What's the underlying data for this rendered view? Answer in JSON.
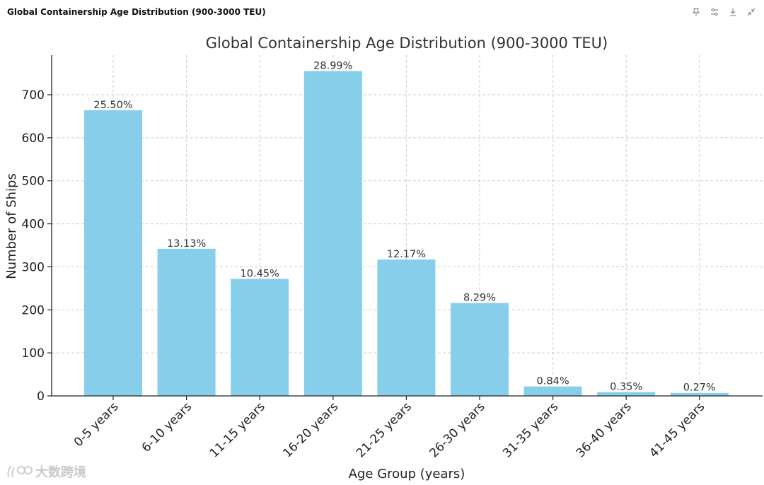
{
  "window": {
    "title": "Global Containership Age Distribution (900-3000 TEU)"
  },
  "toolbar": {
    "icons": [
      "pin-icon",
      "settings-icon",
      "download-icon",
      "collapse-icon"
    ]
  },
  "watermark": {
    "text": "大数跨境"
  },
  "colors": {
    "bar": "#87CEEB",
    "grid": "#cccccc",
    "axis": "#222222"
  },
  "chart_data": {
    "type": "bar",
    "title": "Global Containership Age Distribution (900-3000 TEU)",
    "xlabel": "Age Group (years)",
    "ylabel": "Number of Ships",
    "categories": [
      "0-5 years",
      "6-10 years",
      "11-15 years",
      "16-20 years",
      "21-25 years",
      "26-30 years",
      "31-35 years",
      "36-40 years",
      "41-45 years"
    ],
    "values": [
      664,
      342,
      272,
      755,
      317,
      216,
      22,
      9,
      7
    ],
    "data_labels": [
      "25.50%",
      "13.13%",
      "10.45%",
      "28.99%",
      "12.17%",
      "8.29%",
      "0.84%",
      "0.35%",
      "0.27%"
    ],
    "ylim": [
      0,
      792
    ],
    "yticks": [
      0,
      100,
      200,
      300,
      400,
      500,
      600,
      700
    ],
    "grid": true,
    "legend": "none"
  }
}
